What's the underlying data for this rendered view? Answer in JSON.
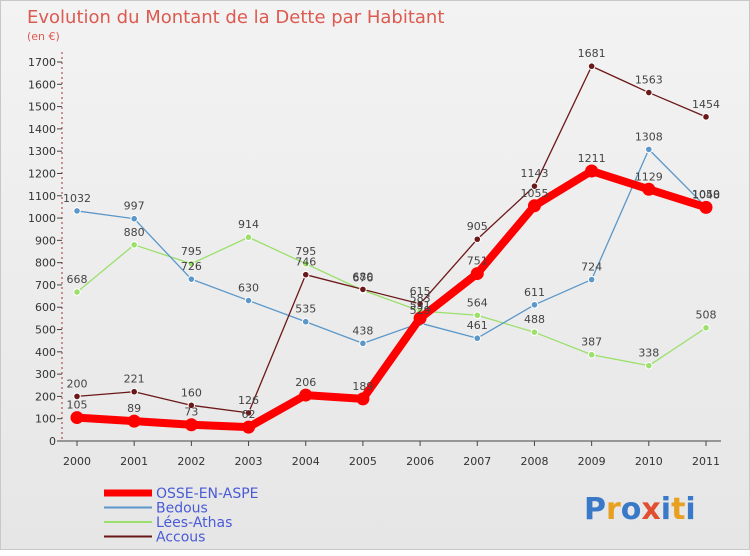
{
  "chart_data": {
    "type": "line",
    "title": "Evolution du Montant de la Dette par Habitant",
    "subtitle": "(en €)",
    "x": [
      "2000",
      "2001",
      "2002",
      "2003",
      "2004",
      "2005",
      "2006",
      "2007",
      "2008",
      "2009",
      "2010",
      "2011"
    ],
    "ylim": [
      0,
      1700
    ],
    "yticks": [
      0,
      100,
      200,
      300,
      400,
      500,
      600,
      700,
      800,
      900,
      1000,
      1100,
      1200,
      1300,
      1400,
      1500,
      1600,
      1700
    ],
    "grid": false,
    "legend_position": "bottom-left",
    "series": [
      {
        "name": "OSSE-EN-ASPE",
        "color": "#ff0000",
        "values": [
          105,
          89,
          73,
          62,
          206,
          189,
          551,
          751,
          1055,
          1211,
          1129,
          1048
        ]
      },
      {
        "name": "Bedous",
        "color": "#5b97c9",
        "values": [
          1032,
          997,
          726,
          630,
          535,
          438,
          529,
          461,
          611,
          724,
          1308,
          1050
        ]
      },
      {
        "name": "Lées-Athas",
        "color": "#9be06a",
        "values": [
          668,
          880,
          795,
          914,
          795,
          676,
          583,
          564,
          488,
          387,
          338,
          508
        ]
      },
      {
        "name": "Accous",
        "color": "#6b1818",
        "values": [
          200,
          221,
          160,
          126,
          746,
          680,
          615,
          905,
          1143,
          1681,
          1563,
          1454
        ]
      }
    ]
  },
  "logo": {
    "text": "Proxiti",
    "letters": [
      "P",
      "r",
      "o",
      "x",
      "i",
      "t",
      "i"
    ],
    "colors": [
      "#3a78c8",
      "#e8a020",
      "#3a78c8",
      "#e05030",
      "#3a78c8",
      "#e8a020",
      "#3a78c8"
    ]
  }
}
